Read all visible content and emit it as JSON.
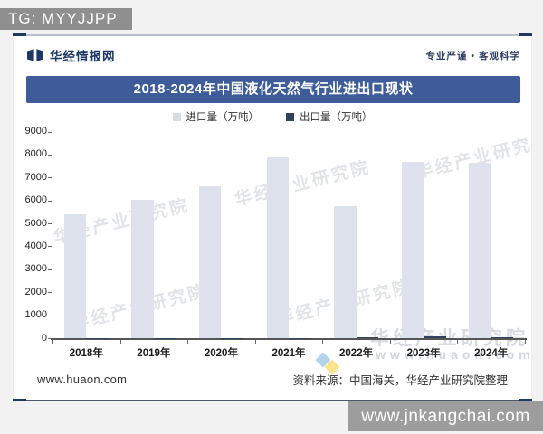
{
  "overlay": {
    "tg_badge": "TG: MYYJJPP",
    "watermark_bar": "www.jnkangchai.com"
  },
  "header": {
    "brand": "华经情报网",
    "tagline": "专业严谨 • 客观科学"
  },
  "title": "2018-2024年中国液化天然气行业进出口现状",
  "legend": {
    "import_label": "进口量（万吨）",
    "export_label": "出口量（万吨）"
  },
  "footer": {
    "site": "www.huaon.com",
    "source": "资料来源：中国海关，华经产业研究院整理"
  },
  "watermark": {
    "text": "华经产业研究院",
    "url": "www.huaon.com"
  },
  "colors": {
    "banner": "#3d5c99",
    "import_bar": "#dee2ed",
    "export_bar": "#31425e",
    "axis": "#555555"
  },
  "chart_data": {
    "type": "bar",
    "title": "2018-2024年中国液化天然气行业进出口现状",
    "categories": [
      "2018年",
      "2019年",
      "2020年",
      "2021年",
      "2022年",
      "2023年",
      "2024年"
    ],
    "series": [
      {
        "name": "进口量（万吨）",
        "color": "#dee2ed",
        "values": [
          5400,
          6050,
          6650,
          7890,
          5780,
          7690,
          7650
        ]
      },
      {
        "name": "出口量（万吨）",
        "color": "#31425e",
        "values": [
          15,
          18,
          22,
          28,
          45,
          115,
          55
        ]
      }
    ],
    "xlabel": "",
    "ylabel": "万吨",
    "ylim": [
      0,
      9000
    ],
    "ytick_step": 1000,
    "grid": false,
    "legend_position": "top"
  }
}
